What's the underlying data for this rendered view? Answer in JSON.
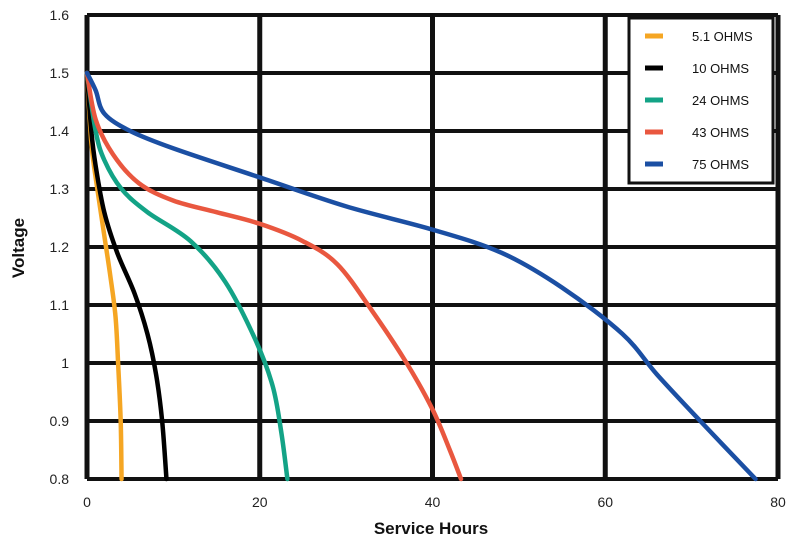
{
  "chart_data": {
    "type": "line",
    "xlabel": "Service Hours",
    "ylabel": "Voltage",
    "xlim": [
      0,
      80
    ],
    "ylim": [
      0.8,
      1.6
    ],
    "x_ticks": [
      "0",
      "20",
      "40",
      "60",
      "80"
    ],
    "y_ticks": [
      "0.8",
      "0.9",
      "1",
      "1.1",
      "1.2",
      "1.3",
      "1.4",
      "1.5",
      "1.6"
    ],
    "grid": true,
    "legend_position": "top-right",
    "series": [
      {
        "name": "5.1 OHMS",
        "color": "#F5A623",
        "x": [
          0,
          0.5,
          1,
          2,
          2.7,
          3.3,
          3.6,
          3.9,
          4.0
        ],
        "y": [
          1.5,
          1.38,
          1.32,
          1.22,
          1.15,
          1.08,
          1.0,
          0.9,
          0.8
        ]
      },
      {
        "name": "10 OHMS",
        "color": "#000000",
        "x": [
          0,
          0.5,
          1,
          2,
          3.5,
          5.5,
          7.0,
          8.0,
          8.7,
          9.2
        ],
        "y": [
          1.5,
          1.4,
          1.34,
          1.26,
          1.19,
          1.12,
          1.05,
          0.98,
          0.9,
          0.8
        ]
      },
      {
        "name": "24 OHMS",
        "color": "#13A386",
        "x": [
          0,
          1,
          2,
          4,
          7,
          12,
          16,
          19.5,
          21.5,
          22.5,
          23.2
        ],
        "y": [
          1.5,
          1.4,
          1.35,
          1.3,
          1.26,
          1.21,
          1.14,
          1.04,
          0.96,
          0.88,
          0.8
        ]
      },
      {
        "name": "43 OHMS",
        "color": "#E9573F",
        "x": [
          0,
          1,
          3,
          6,
          10,
          15,
          20,
          25,
          29,
          33,
          37,
          40,
          42,
          43.3
        ],
        "y": [
          1.5,
          1.42,
          1.36,
          1.31,
          1.28,
          1.26,
          1.24,
          1.21,
          1.17,
          1.09,
          1.0,
          0.92,
          0.85,
          0.8
        ]
      },
      {
        "name": "75 OHMS",
        "color": "#1B4FA3",
        "x": [
          0,
          1,
          2,
          5,
          10,
          20,
          30,
          40,
          48,
          55,
          62,
          66,
          71,
          77.4
        ],
        "y": [
          1.5,
          1.47,
          1.43,
          1.4,
          1.37,
          1.32,
          1.27,
          1.23,
          1.19,
          1.13,
          1.05,
          0.98,
          0.9,
          0.8
        ]
      }
    ]
  }
}
